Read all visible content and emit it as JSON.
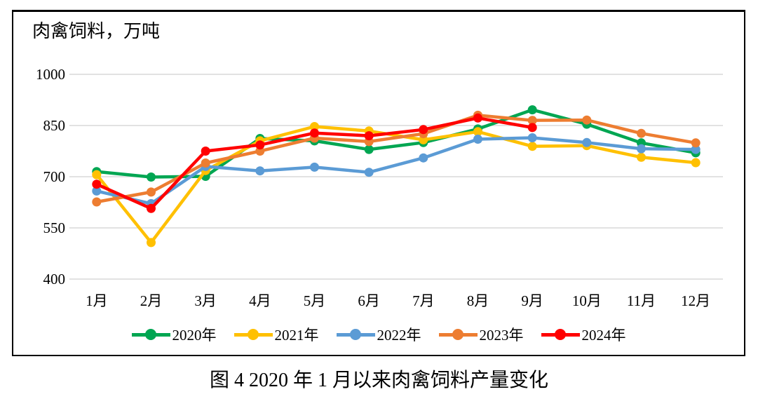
{
  "chart": {
    "title_label": "肉禽饲料，万吨"
  },
  "caption": "图 4  2020 年 1 月以来肉禽饲料产量变化",
  "chart_data": {
    "type": "line",
    "title": "肉禽饲料，万吨",
    "categories": [
      "1月",
      "2月",
      "3月",
      "4月",
      "5月",
      "6月",
      "7月",
      "8月",
      "9月",
      "10月",
      "11月",
      "12月"
    ],
    "series": [
      {
        "name": "2020年",
        "color": "#00A652",
        "values": [
          715,
          699,
          701,
          812,
          805,
          780,
          800,
          840,
          896,
          854,
          799,
          770
        ]
      },
      {
        "name": "2021年",
        "color": "#FFC000",
        "values": [
          706,
          507,
          718,
          805,
          847,
          834,
          808,
          832,
          789,
          791,
          757,
          741
        ]
      },
      {
        "name": "2022年",
        "color": "#5B9BD5",
        "values": [
          658,
          621,
          730,
          717,
          728,
          713,
          755,
          810,
          814,
          800,
          782,
          780
        ]
      },
      {
        "name": "2023年",
        "color": "#ED7D31",
        "values": [
          626,
          655,
          740,
          775,
          813,
          803,
          826,
          880,
          865,
          866,
          827,
          799
        ]
      },
      {
        "name": "2024年",
        "color": "#FF0000",
        "values": [
          678,
          607,
          775,
          793,
          828,
          820,
          838,
          872,
          844,
          null,
          null,
          null
        ]
      }
    ],
    "yticks": [
      400,
      550,
      700,
      850,
      1000
    ],
    "ylim": [
      400,
      1000
    ],
    "grid": true,
    "gridline_color": "#D9D9D9",
    "frame_color": "#000000",
    "legend_position": "bottom",
    "xlabel": "",
    "ylabel": "肉禽饲料，万吨"
  }
}
